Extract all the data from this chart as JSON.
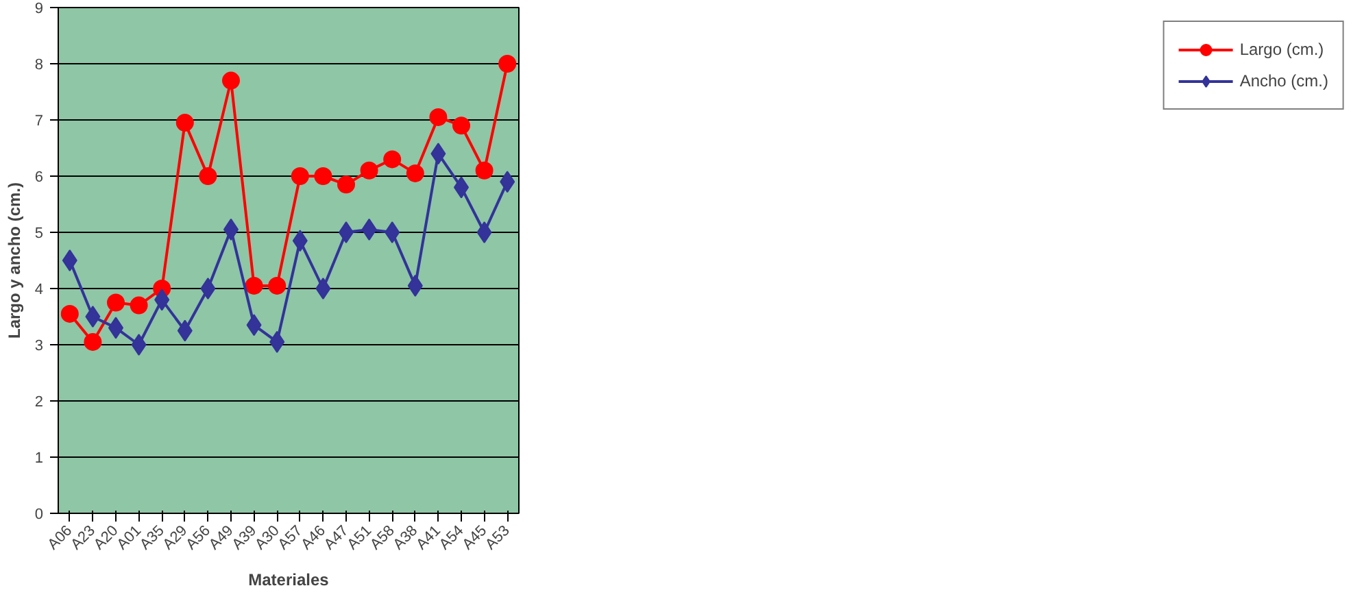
{
  "chart_data": {
    "type": "line",
    "xlabel": "Materiales",
    "ylabel": "Largo y ancho (cm.)",
    "categories": [
      "A06",
      "A23",
      "A20",
      "A01",
      "A35",
      "A29",
      "A56",
      "A49",
      "A39",
      "A30",
      "A57",
      "A46",
      "A47",
      "A51",
      "A58",
      "A38",
      "A41",
      "A54",
      "A45",
      "A53"
    ],
    "series": [
      {
        "name": "Largo (cm.)",
        "color": "#ff0000",
        "marker": "circle",
        "values": [
          3.55,
          3.05,
          3.75,
          3.7,
          4.0,
          6.95,
          6.0,
          7.7,
          4.05,
          4.05,
          6.0,
          6.0,
          5.85,
          6.1,
          6.3,
          6.05,
          7.05,
          6.9,
          6.1,
          8.0
        ]
      },
      {
        "name": "Ancho (cm.)",
        "color": "#333399",
        "marker": "diamond",
        "values": [
          4.5,
          3.5,
          3.3,
          3.0,
          3.8,
          3.25,
          4.0,
          5.05,
          3.35,
          3.05,
          4.85,
          4.0,
          5.0,
          5.05,
          5.0,
          4.05,
          6.4,
          5.8,
          5.0,
          5.9
        ]
      }
    ],
    "ylim": [
      0,
      9
    ],
    "yticks": [
      0,
      1,
      2,
      3,
      4,
      5,
      6,
      7,
      8,
      9
    ],
    "grid": "y",
    "legend": "right",
    "line_style": "solid"
  }
}
